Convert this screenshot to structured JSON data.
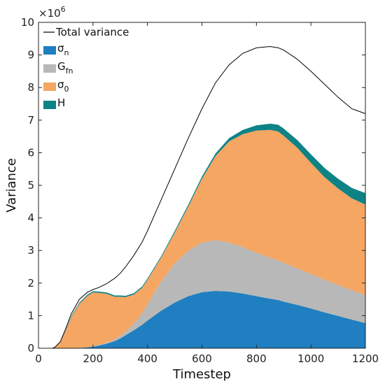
{
  "chart_data": {
    "type": "area",
    "xlabel": "Timestep",
    "ylabel": "Variance",
    "xlim": [
      0,
      1200
    ],
    "ylim": [
      0,
      10
    ],
    "y_multiplier_label": {
      "base": "×10",
      "exponent": "6"
    },
    "xticks": [
      0,
      200,
      400,
      600,
      800,
      1000,
      1200
    ],
    "yticks": [
      0,
      1,
      2,
      3,
      4,
      5,
      6,
      7,
      8,
      9,
      10
    ],
    "legend_position": "top-left",
    "grid": false,
    "x": [
      0,
      50,
      60,
      80,
      100,
      120,
      150,
      180,
      200,
      220,
      250,
      280,
      300,
      320,
      350,
      380,
      400,
      450,
      500,
      550,
      600,
      650,
      700,
      750,
      800,
      850,
      880,
      900,
      950,
      1000,
      1050,
      1100,
      1150,
      1200
    ],
    "series": [
      {
        "name": "σ_n",
        "label_main": "σ",
        "label_sub": "n",
        "color": "#1f7fc0",
        "values": [
          0,
          0,
          0,
          0,
          0,
          0,
          0.01,
          0.03,
          0.05,
          0.08,
          0.14,
          0.22,
          0.3,
          0.4,
          0.55,
          0.72,
          0.85,
          1.15,
          1.4,
          1.6,
          1.72,
          1.76,
          1.74,
          1.68,
          1.6,
          1.52,
          1.48,
          1.43,
          1.33,
          1.22,
          1.1,
          0.99,
          0.88,
          0.77
        ]
      },
      {
        "name": "G_fn",
        "label_main": "G",
        "label_sub": "fn",
        "color": "#b8b8b8",
        "values": [
          0,
          0,
          0,
          0,
          0,
          0,
          0,
          0,
          0.01,
          0.02,
          0.03,
          0.05,
          0.08,
          0.12,
          0.2,
          0.35,
          0.5,
          0.9,
          1.2,
          1.4,
          1.52,
          1.56,
          1.5,
          1.42,
          1.33,
          1.26,
          1.22,
          1.19,
          1.12,
          1.06,
          1.0,
          0.95,
          0.9,
          0.86
        ]
      },
      {
        "name": "σ_0",
        "label_main": "σ",
        "label_sub": "0",
        "color": "#f4a662",
        "values": [
          0,
          0,
          0.03,
          0.18,
          0.55,
          0.95,
          1.35,
          1.58,
          1.65,
          1.6,
          1.5,
          1.31,
          1.2,
          1.05,
          0.9,
          0.78,
          0.75,
          0.73,
          0.95,
          1.35,
          1.96,
          2.58,
          3.11,
          3.47,
          3.75,
          3.92,
          3.95,
          3.9,
          3.7,
          3.41,
          3.15,
          2.96,
          2.82,
          2.78
        ]
      },
      {
        "name": "H",
        "label_main": "H",
        "label_sub": "",
        "color": "#0e8385",
        "values": [
          0,
          0,
          0,
          0.01,
          0.02,
          0.03,
          0.04,
          0.04,
          0.04,
          0.04,
          0.04,
          0.04,
          0.04,
          0.04,
          0.04,
          0.04,
          0.04,
          0.04,
          0.05,
          0.06,
          0.07,
          0.08,
          0.1,
          0.13,
          0.16,
          0.19,
          0.21,
          0.22,
          0.24,
          0.26,
          0.28,
          0.3,
          0.32,
          0.35
        ]
      }
    ],
    "total": {
      "name": "Total variance",
      "color": "#000000",
      "values": [
        0,
        0,
        0.03,
        0.2,
        0.6,
        1.05,
        1.5,
        1.72,
        1.8,
        1.86,
        1.98,
        2.15,
        2.3,
        2.5,
        2.85,
        3.25,
        3.6,
        4.55,
        5.5,
        6.45,
        7.35,
        8.15,
        8.7,
        9.05,
        9.22,
        9.26,
        9.22,
        9.15,
        8.87,
        8.5,
        8.1,
        7.7,
        7.35,
        7.2
      ]
    }
  }
}
